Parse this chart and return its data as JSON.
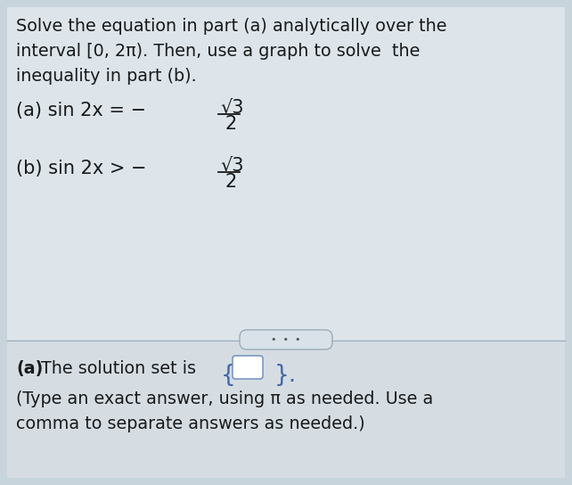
{
  "bg_color": "#c8d4dc",
  "upper_bg": "#d8e0e6",
  "lower_bg": "#d0d8de",
  "text_color": "#1a1a1a",
  "bold_color": "#111111",
  "line1": "Solve the equation in part (a) analytically over the",
  "line2": "interval [0, 2π). Then, use a graph to solve  the",
  "line3": "inequality in part (b).",
  "part_a": "(a) sin 2x = −",
  "part_b": "(b) sin 2x > −",
  "sqrt3": "√3",
  "two": "2",
  "dots": "•  •  •",
  "answer_bold": "(a)",
  "answer_rest": " The solution set is",
  "answer_line2": "(Type an exact answer, using π as needed. Use a",
  "answer_line3": "comma to separate answers as needed.)",
  "font_size": 13.8,
  "font_size_math": 15.0
}
